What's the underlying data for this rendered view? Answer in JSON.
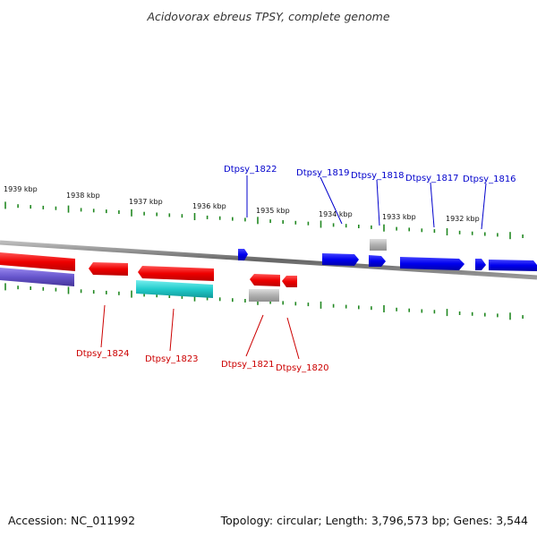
{
  "title": "Acidovorax ebreus TPSY, complete genome",
  "footer": {
    "accession": "Accession: NC_011992",
    "stats": "Topology: circular; Length: 3,796,573 bp; Genes: 3,544"
  },
  "colors": {
    "forward_gene": "#0000ee",
    "reverse_gene": "#ee0000",
    "cds_track_cyan": "#22cccc",
    "cds_track_purple": "#6655cc",
    "other_feature": "#aaaaaa",
    "tick": "#228822",
    "backbone": "#888888",
    "forward_label": "#0000cc",
    "reverse_label": "#cc0000"
  },
  "kbp_labels": [
    "1939 kbp",
    "1938 kbp",
    "1937 kbp",
    "1936 kbp",
    "1935 kbp",
    "1934 kbp",
    "1933 kbp",
    "1932 kbp"
  ],
  "forward_genes": [
    "Dtpsy_1822",
    "Dtpsy_1819",
    "Dtpsy_1818",
    "Dtpsy_1817",
    "Dtpsy_1816"
  ],
  "reverse_genes": [
    "Dtpsy_1824",
    "Dtpsy_1823",
    "Dtpsy_1821",
    "Dtpsy_1820"
  ]
}
